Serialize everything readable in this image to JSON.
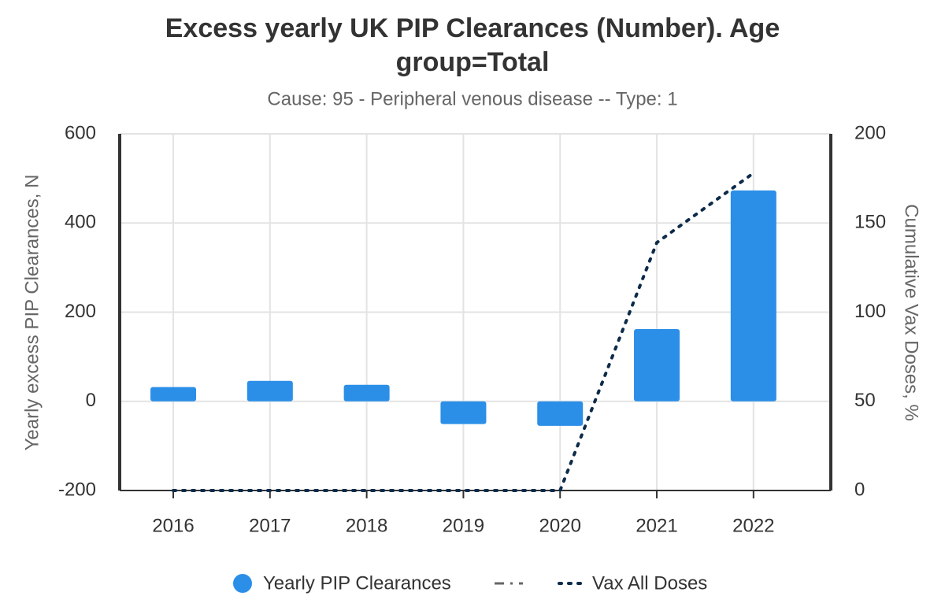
{
  "chart_data": {
    "type": "bar",
    "title": "Excess yearly UK PIP Clearances (Number). Age",
    "title_line2": "group=Total",
    "subtitle": "Cause: 95 - Peripheral venous disease -- Type: 1",
    "y_label": "Yearly excess PIP Clearances, N",
    "y2_label": "Cumulative Vax Doses, %",
    "categories": [
      "2016",
      "2017",
      "2018",
      "2019",
      "2020",
      "2021",
      "2022"
    ],
    "series": [
      {
        "name": "Yearly PIP Clearances",
        "type": "bar",
        "color": "#2b8fe8",
        "values": [
          32,
          46,
          37,
          -51,
          -55,
          162,
          473
        ]
      },
      {
        "name": "Vax All Doses",
        "type": "line",
        "axis": "y2",
        "color": "#0d2b4a",
        "values": [
          0,
          0,
          0,
          0,
          0,
          139,
          178
        ]
      }
    ],
    "ylim": [
      -200,
      600
    ],
    "yticks": [
      -200,
      0,
      200,
      400,
      600
    ],
    "y2lim": [
      0,
      200
    ],
    "y2ticks": [
      0,
      50,
      100,
      150,
      200
    ],
    "grid": true
  }
}
